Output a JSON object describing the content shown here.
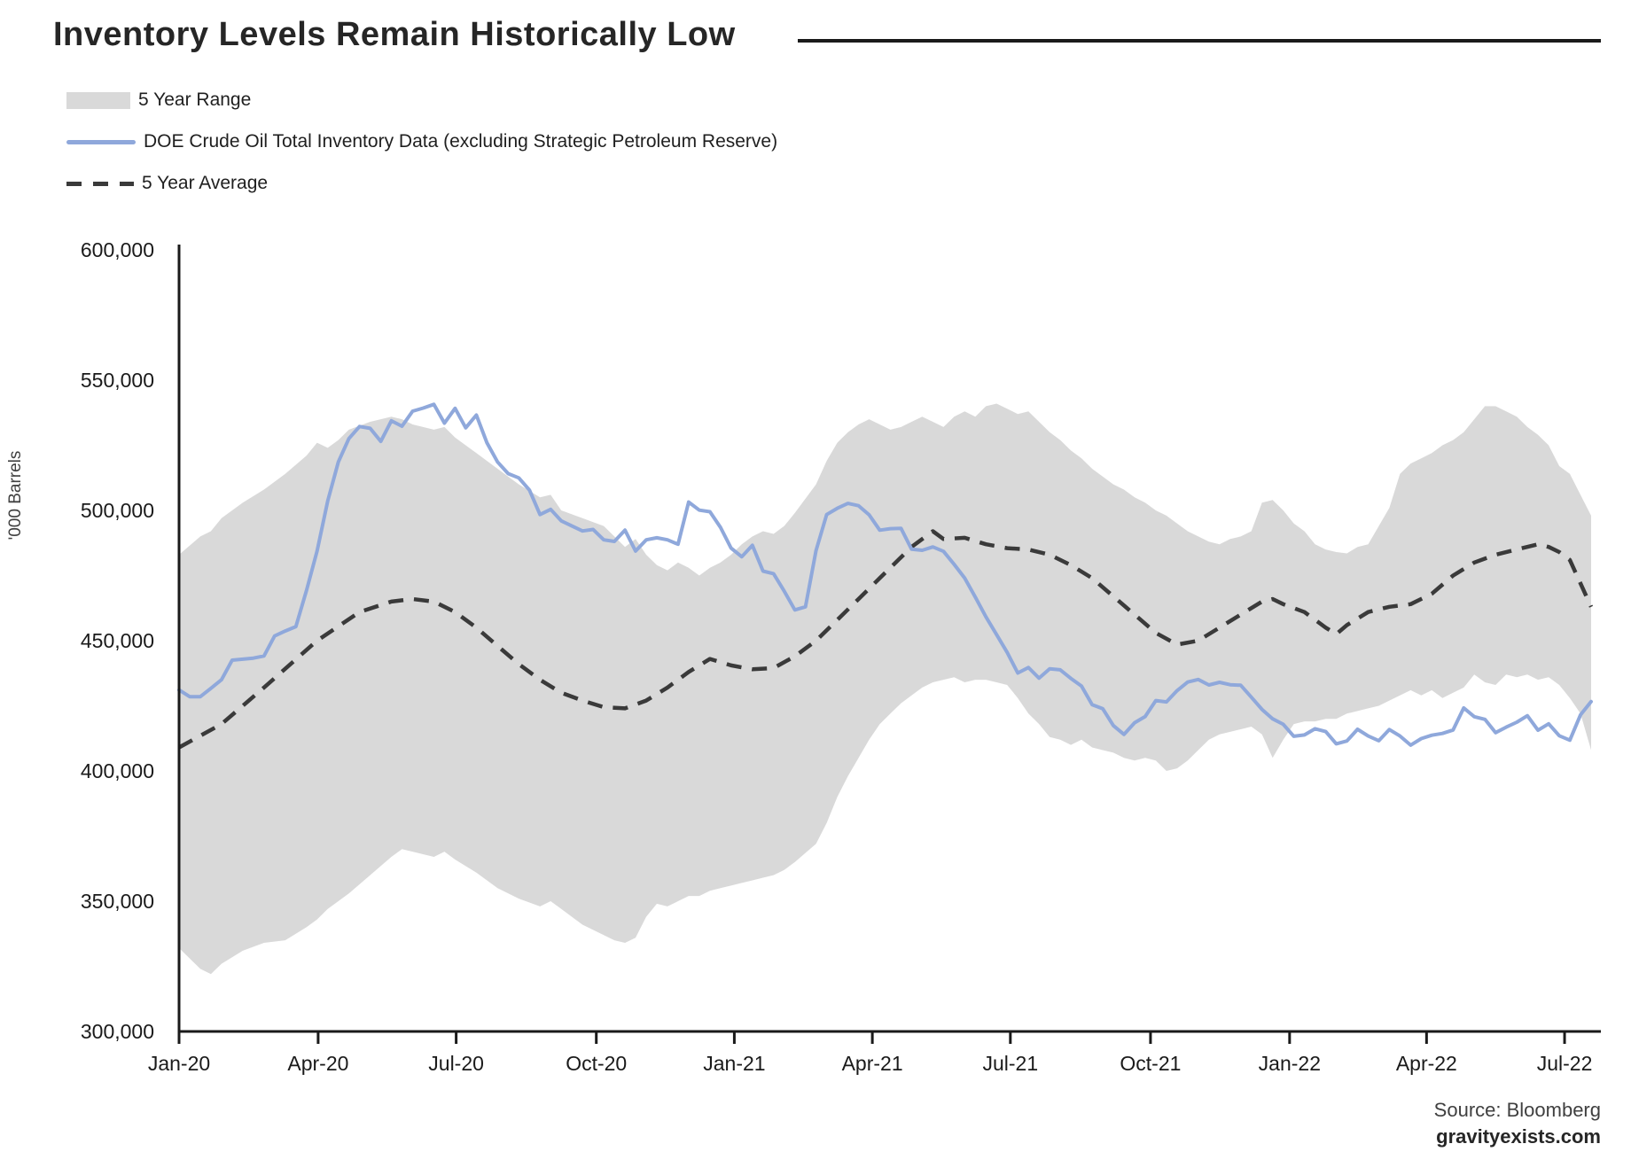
{
  "title": "Inventory Levels Remain Historically Low",
  "legend": [
    {
      "id": "five-year-range",
      "label": "5 Year Range",
      "swatch": "band",
      "color": "#d9d9d9"
    },
    {
      "id": "doe-inventory",
      "label": "DOE Crude Oil Total Inventory Data (excluding Strategic Petroleum Reserve)",
      "swatch": "line",
      "color": "#8fa8db"
    },
    {
      "id": "five-year-average",
      "label": "5 Year Average",
      "swatch": "dash",
      "color": "#3a3a3a"
    }
  ],
  "y_axis": {
    "unit_label": "'000 Barrels",
    "tick_labels": [
      "600,000",
      "550,000",
      "500,000",
      "450,000",
      "400,000",
      "350,000",
      "300,000"
    ],
    "tick_values": [
      600000,
      550000,
      500000,
      450000,
      400000,
      350000,
      300000
    ]
  },
  "x_axis": {
    "tick_labels": [
      "Jan-20",
      "Apr-20",
      "Jul-20",
      "Oct-20",
      "Jan-21",
      "Apr-21",
      "Jul-21",
      "Oct-21",
      "Jan-22",
      "Apr-22",
      "Jul-22"
    ],
    "tick_weeks": [
      0,
      13.1,
      26.1,
      39.3,
      52.3,
      65.3,
      78.3,
      91.5,
      104.6,
      117.5,
      130.5
    ]
  },
  "source": {
    "line1": "Source: Bloomberg",
    "line2": "gravityexists.com"
  },
  "colors": {
    "band": "#d9d9d9",
    "doe_line": "#8fa8db",
    "avg_line": "#3a3a3a",
    "axis": "#1a1a1a",
    "text": "#1f1f1f"
  },
  "chart_data": {
    "type": "line",
    "title": "Inventory Levels Remain Historically Low",
    "ylabel": "'000 Barrels",
    "ylim": [
      300000,
      600000
    ],
    "x_unit": "weeks since Jan-2020 (weekly data, 0 = first week of Jan-20, 133 = last week shown, Jul-22)",
    "grid": false,
    "legend_position": "top-left",
    "series": [
      {
        "name": "DOE Crude Oil Total Inventory Data (excluding Strategic Petroleum Reserve)",
        "style": "solid",
        "color": "#8fa8db",
        "weekly_values": [
          431100,
          428500,
          428500,
          431700,
          435000,
          442500,
          442900,
          443300,
          444100,
          451800,
          453700,
          455400,
          469200,
          484400,
          503600,
          518600,
          527600,
          532200,
          531500,
          526500,
          534400,
          532300,
          538100,
          539300,
          540700,
          533500,
          539200,
          531700,
          536600,
          526000,
          518600,
          514100,
          512500,
          507800,
          498400,
          500400,
          496000,
          494000,
          492100,
          492700,
          488700,
          488100,
          492400,
          484400,
          488700,
          489500,
          488700,
          487000,
          503200,
          500100,
          499500,
          493500,
          485500,
          482200,
          486600,
          476700,
          475700,
          469000,
          461800,
          463000,
          484600,
          498400,
          500800,
          502700,
          501800,
          498300,
          492400,
          493000,
          493100,
          485100,
          484700,
          486000,
          484300,
          479300,
          474000,
          466700,
          459100,
          452300,
          445500,
          437600,
          439700,
          435600,
          439200,
          438800,
          435500,
          432600,
          425400,
          423900,
          417400,
          414000,
          418500,
          420900,
          427000,
          426500,
          430800,
          434100,
          435100,
          433000,
          434000,
          433100,
          432900,
          428300,
          423600,
          420000,
          417900,
          413300,
          413800,
          416200,
          415100,
          410400,
          411500,
          416000,
          413400,
          411600,
          415900,
          413400,
          409900,
          412400,
          413700,
          414400,
          415700,
          424200,
          420800,
          419800,
          414700,
          416800,
          418700,
          421200,
          415600,
          418100,
          413500,
          411800,
          421500,
          426600
        ]
      },
      {
        "name": "5 Year Average",
        "style": "dashed",
        "color": "#3a3a3a",
        "anchor_weeks": [
          0,
          4,
          8,
          13,
          17,
          20,
          22,
          24,
          26,
          28,
          30,
          32,
          34,
          36,
          38,
          40,
          42,
          44,
          46,
          48,
          50,
          52,
          54,
          56,
          58,
          60,
          62,
          64,
          66,
          68,
          69,
          70,
          71,
          72,
          74,
          76,
          78,
          80,
          82,
          84,
          86,
          88,
          90,
          92,
          94,
          96,
          98,
          100,
          102,
          103,
          104,
          106,
          108,
          109,
          110,
          112,
          114,
          116,
          118,
          120,
          122,
          124,
          126,
          128,
          129,
          130,
          131,
          132,
          133
        ],
        "anchor_values": [
          409000,
          418000,
          432000,
          450000,
          461000,
          465000,
          466000,
          465000,
          461000,
          455000,
          448000,
          441000,
          435000,
          430000,
          427000,
          424500,
          424000,
          427000,
          432000,
          438000,
          443000,
          440500,
          439000,
          439500,
          444000,
          450000,
          458000,
          466000,
          474000,
          482000,
          486000,
          489000,
          492000,
          489000,
          489500,
          487000,
          485500,
          485000,
          483000,
          479000,
          474000,
          467000,
          460000,
          453000,
          448500,
          450000,
          455000,
          460000,
          465000,
          466000,
          464000,
          461000,
          455000,
          452500,
          456000,
          461000,
          463000,
          464000,
          468000,
          475000,
          480000,
          483000,
          485000,
          487000,
          486000,
          484000,
          481000,
          472000,
          463000
        ]
      }
    ],
    "band": {
      "name": "5 Year Range",
      "color": "#d9d9d9",
      "weeks": [
        0,
        2,
        3,
        4,
        6,
        8,
        10,
        12,
        13,
        14,
        15,
        16,
        18,
        20,
        21,
        22,
        24,
        25,
        26,
        28,
        30,
        32,
        34,
        35,
        36,
        38,
        40,
        41,
        42,
        43,
        44,
        45,
        46,
        47,
        48,
        49,
        50,
        51,
        52,
        53,
        54,
        55,
        56,
        57,
        58,
        60,
        61,
        62,
        63,
        64,
        65,
        66,
        67,
        68,
        69,
        70,
        71,
        72,
        73,
        74,
        75,
        76,
        77,
        78,
        79,
        80,
        81,
        82,
        83,
        84,
        85,
        86,
        87,
        88,
        89,
        90,
        91,
        92,
        93,
        94,
        95,
        96,
        97,
        98,
        99,
        100,
        101,
        102,
        103,
        104,
        105,
        106,
        107,
        108,
        109,
        110,
        111,
        112,
        113,
        114,
        115,
        116,
        117,
        118,
        119,
        120,
        121,
        122,
        123,
        124,
        125,
        126,
        127,
        128,
        129,
        130,
        131,
        132,
        133
      ],
      "top": [
        483000,
        490000,
        492000,
        497000,
        503000,
        508000,
        514000,
        521000,
        526000,
        524000,
        527000,
        531000,
        534000,
        536000,
        535000,
        533000,
        531000,
        532000,
        528000,
        522000,
        516000,
        510000,
        505000,
        506000,
        500000,
        497000,
        494000,
        490000,
        486000,
        489000,
        483000,
        479000,
        477000,
        480000,
        478000,
        475000,
        478000,
        480000,
        483000,
        487000,
        490000,
        492000,
        491000,
        494000,
        499000,
        510000,
        519000,
        526000,
        530000,
        533000,
        535000,
        533000,
        531000,
        532000,
        534000,
        536000,
        534000,
        532000,
        536000,
        538000,
        536000,
        540000,
        541000,
        539000,
        537000,
        538000,
        534000,
        530000,
        527000,
        523000,
        520000,
        516000,
        513000,
        510000,
        508000,
        505000,
        503000,
        500000,
        498000,
        495000,
        492000,
        490000,
        488000,
        487000,
        489000,
        490000,
        492000,
        503000,
        504000,
        500000,
        495000,
        492000,
        487000,
        485000,
        484000,
        483500,
        486000,
        487000,
        494000,
        501000,
        514000,
        518000,
        520000,
        522000,
        525000,
        527000,
        530000,
        535000,
        540000,
        540000,
        538000,
        536000,
        532000,
        529000,
        525000,
        517000,
        514000,
        506000,
        498000
      ],
      "bottom": [
        332000,
        324000,
        322000,
        326000,
        331000,
        334000,
        335000,
        340000,
        343000,
        347000,
        350000,
        353000,
        360000,
        367000,
        370000,
        369000,
        367000,
        369000,
        366000,
        361000,
        355000,
        351000,
        348000,
        350000,
        347000,
        341000,
        337000,
        335000,
        334000,
        336000,
        344000,
        349000,
        348000,
        350000,
        352000,
        352000,
        354000,
        355000,
        356000,
        357000,
        358000,
        359000,
        360000,
        362000,
        365000,
        372000,
        380000,
        390000,
        398000,
        405000,
        412000,
        418000,
        422000,
        426000,
        429000,
        432000,
        434000,
        435000,
        436000,
        434000,
        435000,
        435000,
        434000,
        433000,
        428000,
        422000,
        418000,
        413000,
        412000,
        410000,
        412000,
        409000,
        408000,
        407000,
        405000,
        404000,
        405000,
        404000,
        400000,
        401000,
        404000,
        408000,
        412000,
        414000,
        415000,
        416000,
        417000,
        414000,
        405000,
        412000,
        418000,
        419000,
        419000,
        420000,
        420000,
        422000,
        423000,
        424000,
        425000,
        427000,
        429000,
        431000,
        429000,
        431000,
        428000,
        430000,
        432000,
        437000,
        434000,
        433000,
        437000,
        436000,
        437000,
        435000,
        436000,
        433000,
        428000,
        422000,
        408000
      ]
    }
  }
}
